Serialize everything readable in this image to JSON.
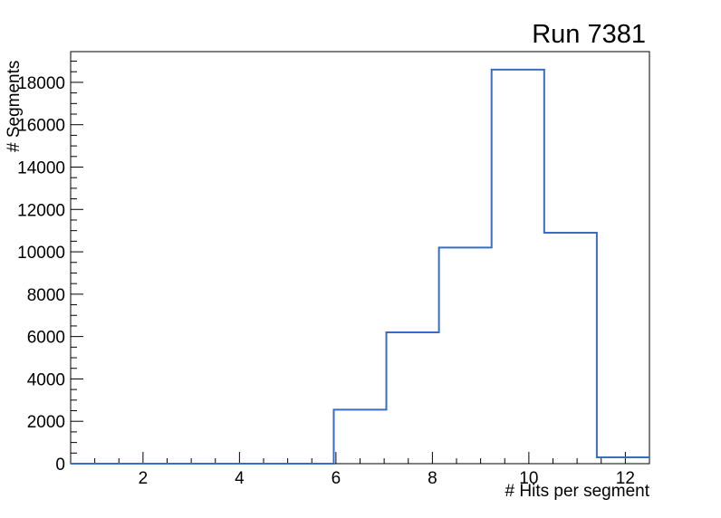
{
  "page": {
    "background": "#ffffff"
  },
  "chart_data": {
    "type": "step-histogram",
    "title": "Run 7381",
    "xlabel": "# Hits per segment",
    "ylabel": "# Segments",
    "xlim": [
      0.5,
      12.5
    ],
    "ylim": [
      0,
      19450
    ],
    "n_bins": 11,
    "bin_edges": [
      0.5,
      1.591,
      2.682,
      3.773,
      4.864,
      5.955,
      7.045,
      8.136,
      9.227,
      10.318,
      11.409,
      12.5
    ],
    "values": [
      0,
      0,
      0,
      0,
      0,
      2550,
      6200,
      10200,
      18600,
      10900,
      300
    ],
    "x_major_ticks": [
      2,
      4,
      6,
      8,
      10,
      12
    ],
    "x_minor_step": 0.5,
    "y_major_ticks": [
      0,
      2000,
      4000,
      6000,
      8000,
      10000,
      12000,
      14000,
      16000,
      18000
    ],
    "y_minor_step": 500,
    "grid": false,
    "legend": null,
    "line_color": "#3a6cc4",
    "axis_color": "#000000",
    "text_color": "#000000"
  }
}
